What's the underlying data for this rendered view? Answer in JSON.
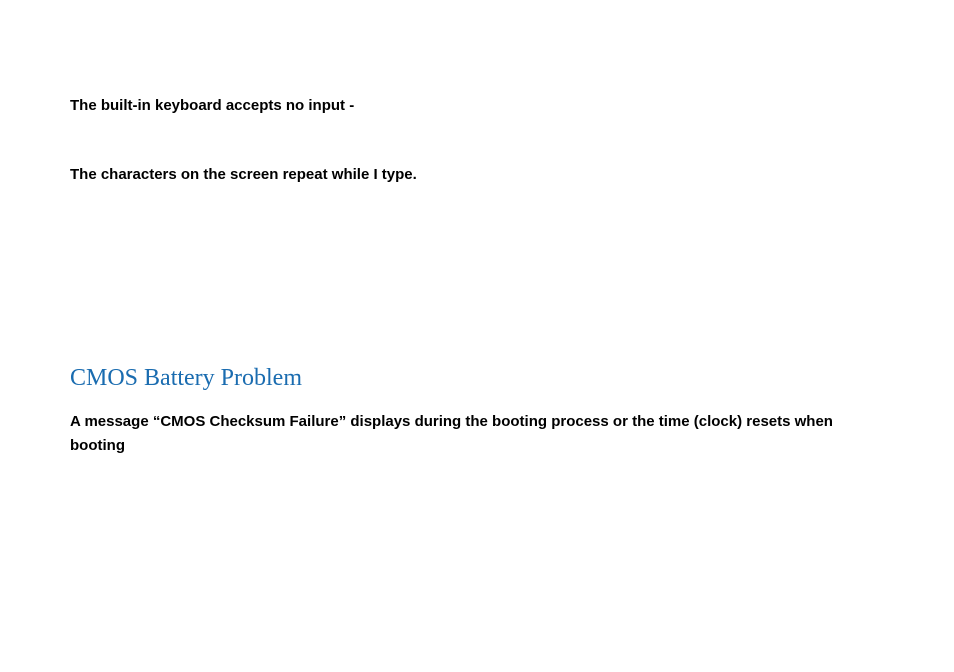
{
  "problems": {
    "p1": "The built-in keyboard accepts no input -",
    "p2": "The characters on the screen repeat while I type."
  },
  "section": {
    "heading": "CMOS Battery Problem",
    "heading_color": "#1a6cb0",
    "body": "A message “CMOS Checksum Failure” displays during the booting process or the time (clock) resets when booting"
  },
  "colors": {
    "background": "#ffffff",
    "text": "#000000"
  }
}
